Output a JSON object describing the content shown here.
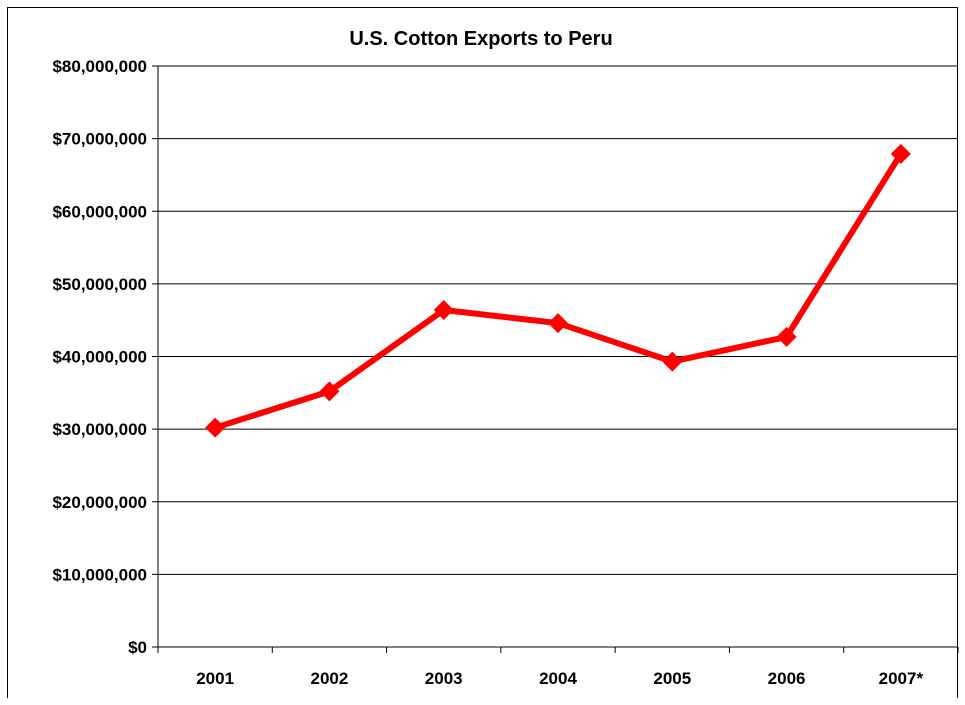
{
  "chart_data": {
    "type": "line",
    "title": "U.S. Cotton Exports to Peru",
    "xlabel": "",
    "ylabel": "",
    "categories": [
      "2001",
      "2002",
      "2003",
      "2004",
      "2005",
      "2006",
      "2007*"
    ],
    "series": [
      {
        "values": [
          30200000,
          35200000,
          46400000,
          44600000,
          39300000,
          42700000,
          67900000
        ]
      }
    ],
    "ylim": [
      0,
      80000000
    ],
    "yticks": [
      "$0",
      "$10,000,000",
      "$20,000,000",
      "$30,000,000",
      "$40,000,000",
      "$50,000,000",
      "$60,000,000",
      "$70,000,000",
      "$80,000,000"
    ],
    "grid": true,
    "legend": "none",
    "colors": {
      "line": "#ff0000",
      "marker": "#ff0000",
      "grid": "#000000"
    }
  }
}
